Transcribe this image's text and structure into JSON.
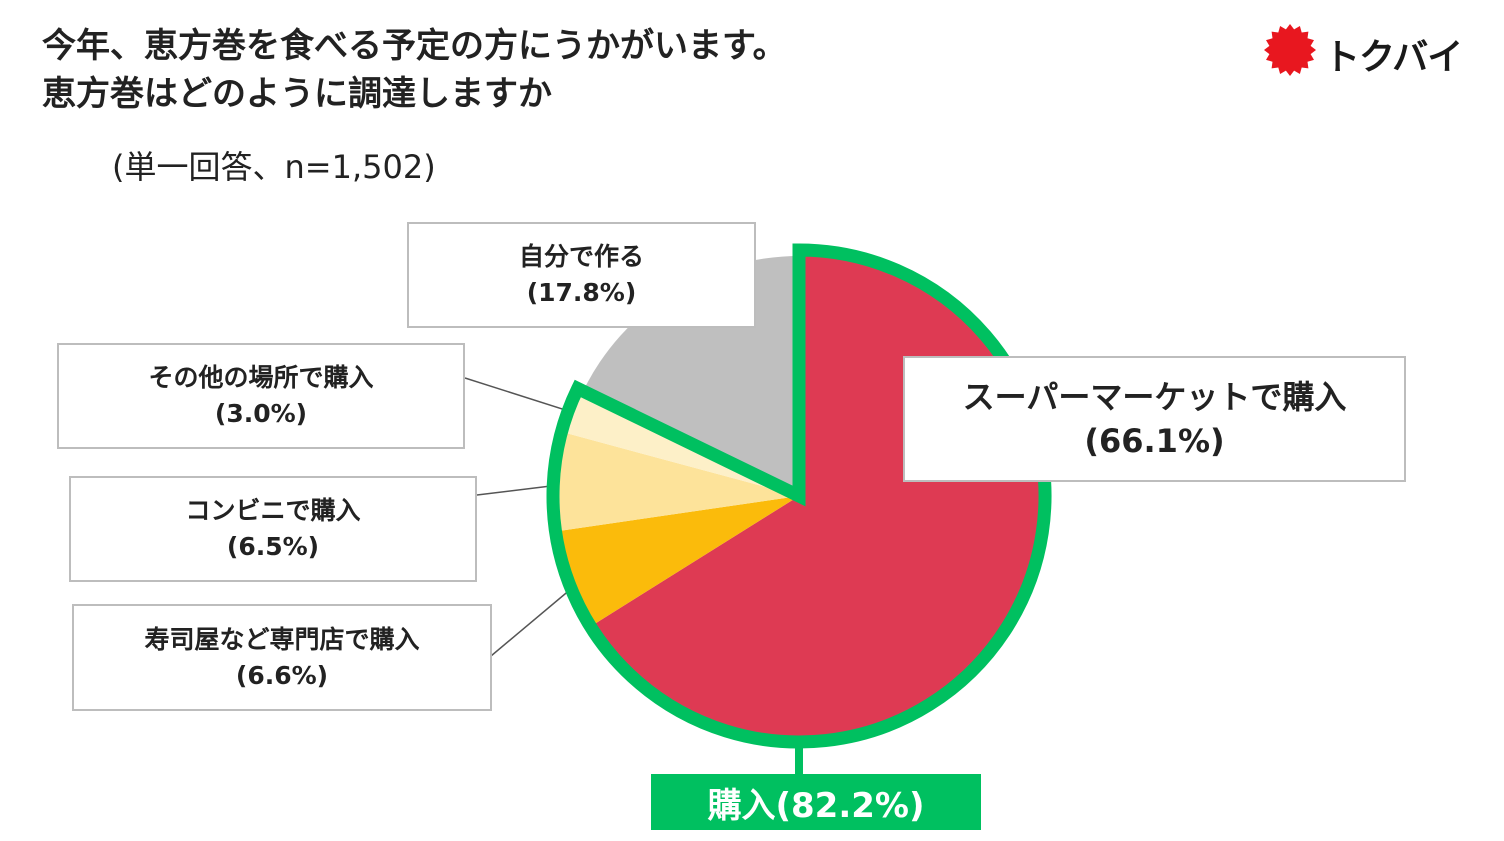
{
  "title_line1": "今年、恵方巻を食べる予定の方にうかがいます。",
  "title_line2": "恵方巻はどのように調達しますか",
  "subtitle": "(単一回答、n=1,502)",
  "logo": {
    "text": "トクバイ",
    "mark_color": "#e8171f"
  },
  "chart_data": {
    "type": "pie",
    "title": "今年、恵方巻を食べる予定の方にうかがいます。恵方巻はどのように調達しますか",
    "start_angle_deg": 0,
    "direction": "clockwise",
    "slices": [
      {
        "label": "スーパーマーケットで購入",
        "value": 66.1,
        "display": "(66.1%)",
        "color": "#de3a53"
      },
      {
        "label": "寿司屋など専門店で購入",
        "value": 6.6,
        "display": "(6.6%)",
        "color": "#fbbb0b"
      },
      {
        "label": "コンビニで購入",
        "value": 6.5,
        "display": "(6.5%)",
        "color": "#fde39a"
      },
      {
        "label": "その他の場所で購入",
        "value": 3.0,
        "display": "(3.0%)",
        "color": "#fdf0c8"
      },
      {
        "label": "自分で作る",
        "value": 17.8,
        "display": "(17.8%)",
        "color": "#bfbfbf"
      }
    ],
    "group_highlight": {
      "label": "購入(82.2%)",
      "value": 82.2,
      "color": "#00c060"
    }
  }
}
